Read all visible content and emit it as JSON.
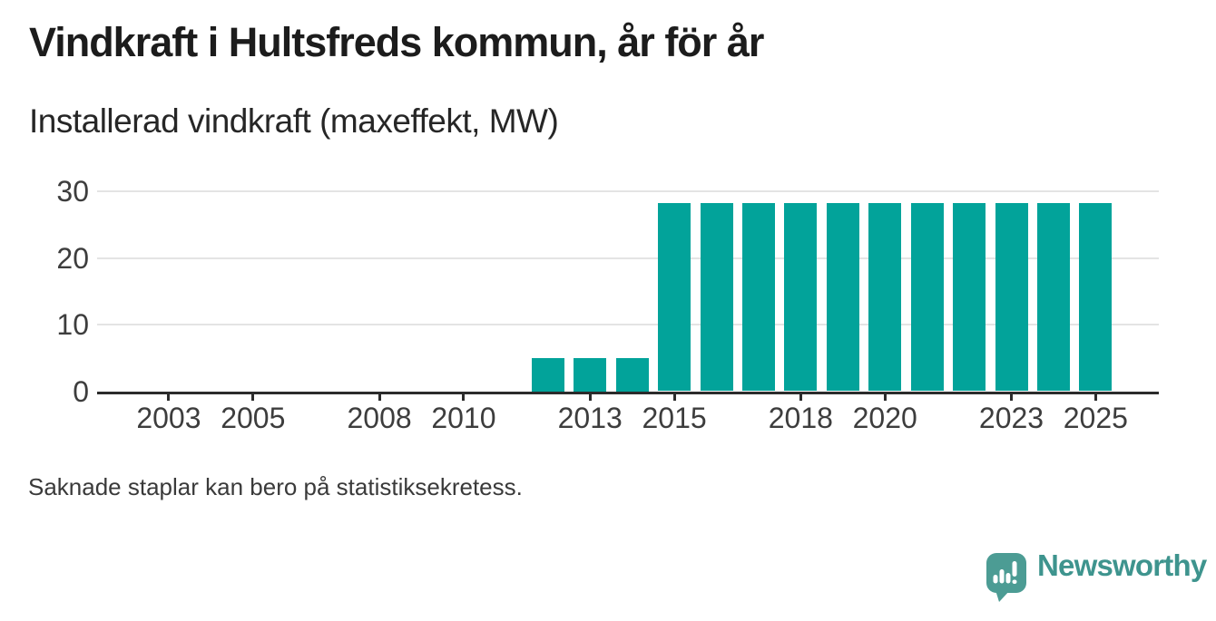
{
  "chart_data": {
    "type": "bar",
    "title": "Vindkraft i Hultsfreds kommun, år för år",
    "subtitle": "Installerad vindkraft (maxeffekt, MW)",
    "unit": "MW",
    "years": [
      2001,
      2002,
      2003,
      2004,
      2005,
      2006,
      2007,
      2008,
      2009,
      2010,
      2011,
      2012,
      2013,
      2014,
      2015,
      2016,
      2017,
      2018,
      2019,
      2020,
      2021,
      2022,
      2023,
      2024,
      2025
    ],
    "values": [
      null,
      null,
      null,
      null,
      null,
      null,
      null,
      null,
      null,
      null,
      null,
      5,
      5,
      5,
      28.2,
      28.2,
      28.2,
      28.2,
      28.2,
      28.2,
      28.2,
      28.2,
      28.2,
      28.2,
      28.2
    ],
    "yticks": [
      0,
      10,
      20,
      30
    ],
    "xticks": [
      2003,
      2005,
      2008,
      2010,
      2013,
      2015,
      2018,
      2020,
      2023,
      2025
    ],
    "ylim": [
      0,
      30
    ],
    "xlim": [
      2001.3,
      2026.5
    ],
    "grid": "horizontal-only",
    "legend": "none",
    "bar_color": "#02a39a",
    "axis_color": "#2b2b2b",
    "grid_color": "#e4e4e4",
    "label_color": "#3d3d3d"
  },
  "footer": {
    "note": "Saknade staplar kan bero på statistiksekretess."
  },
  "branding": {
    "name": "Newsworthy",
    "icon_color": "#4c9c94",
    "text_color": "#3e948e"
  }
}
